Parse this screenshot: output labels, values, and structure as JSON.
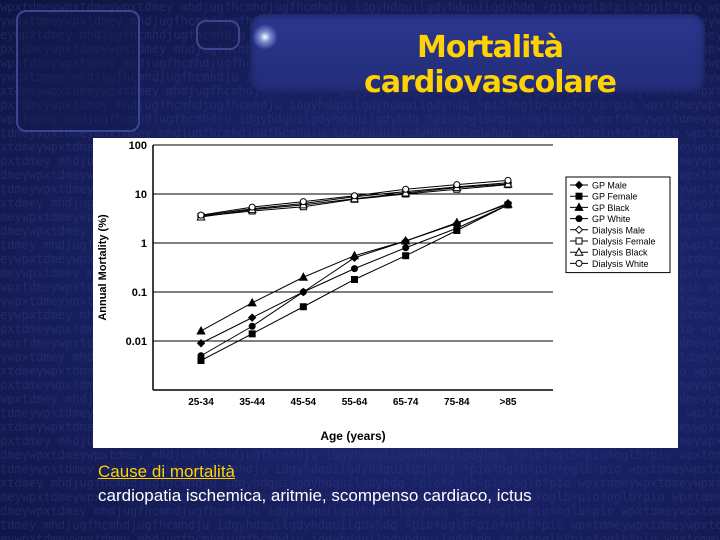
{
  "slide": {
    "title": "Mortalità cardiovascolare",
    "cause_heading": "Cause di mortalità",
    "cause_text": "cardiopatia ischemica, aritmie, scompenso cardiaco, ictus",
    "colors": {
      "background": "#141c4e",
      "title": "#ffd200",
      "heading": "#ffd200",
      "text": "#ffffff"
    },
    "icons": [
      "star-glow-icon"
    ]
  },
  "chart_data": {
    "type": "line",
    "xlabel": "Age (years)",
    "ylabel": "Annual Mortality (%)",
    "y_scale": "log",
    "ylim": [
      0.001,
      100
    ],
    "yticks": [
      "100",
      "10",
      "1",
      "0.1",
      "0.01"
    ],
    "categories": [
      "25-34",
      "35-44",
      "45-54",
      "55-64",
      "65-74",
      "75-84",
      ">85"
    ],
    "grid": true,
    "legend_position": "right",
    "series": [
      {
        "name": "GP Male",
        "marker": "diamond-filled",
        "values": [
          0.009,
          0.03,
          0.1,
          0.5,
          1.1,
          2.5,
          6.5
        ]
      },
      {
        "name": "GP Female",
        "marker": "square-filled",
        "values": [
          0.004,
          0.014,
          0.05,
          0.18,
          0.55,
          1.8,
          6.0
        ]
      },
      {
        "name": "GP Black",
        "marker": "triangle-filled",
        "values": [
          0.016,
          0.06,
          0.2,
          0.55,
          1.1,
          2.6,
          6.2
        ]
      },
      {
        "name": "GP White",
        "marker": "circle-filled",
        "values": [
          0.005,
          0.02,
          0.1,
          0.3,
          0.8,
          2.0,
          6.0
        ]
      },
      {
        "name": "Dialysis Male",
        "marker": "diamond-open",
        "values": [
          3.6,
          5.0,
          6.4,
          8.8,
          11.2,
          14.0,
          17.0
        ]
      },
      {
        "name": "Dialysis Female",
        "marker": "square-open",
        "values": [
          3.5,
          4.5,
          5.5,
          7.8,
          10.0,
          12.5,
          15.5
        ]
      },
      {
        "name": "Dialysis Black",
        "marker": "triangle-open",
        "values": [
          3.4,
          4.8,
          6.0,
          8.0,
          10.5,
          13.5,
          16.0
        ]
      },
      {
        "name": "Dialysis White",
        "marker": "circle-open",
        "values": [
          3.7,
          5.4,
          7.0,
          9.2,
          12.5,
          15.5,
          19.0
        ]
      }
    ]
  }
}
